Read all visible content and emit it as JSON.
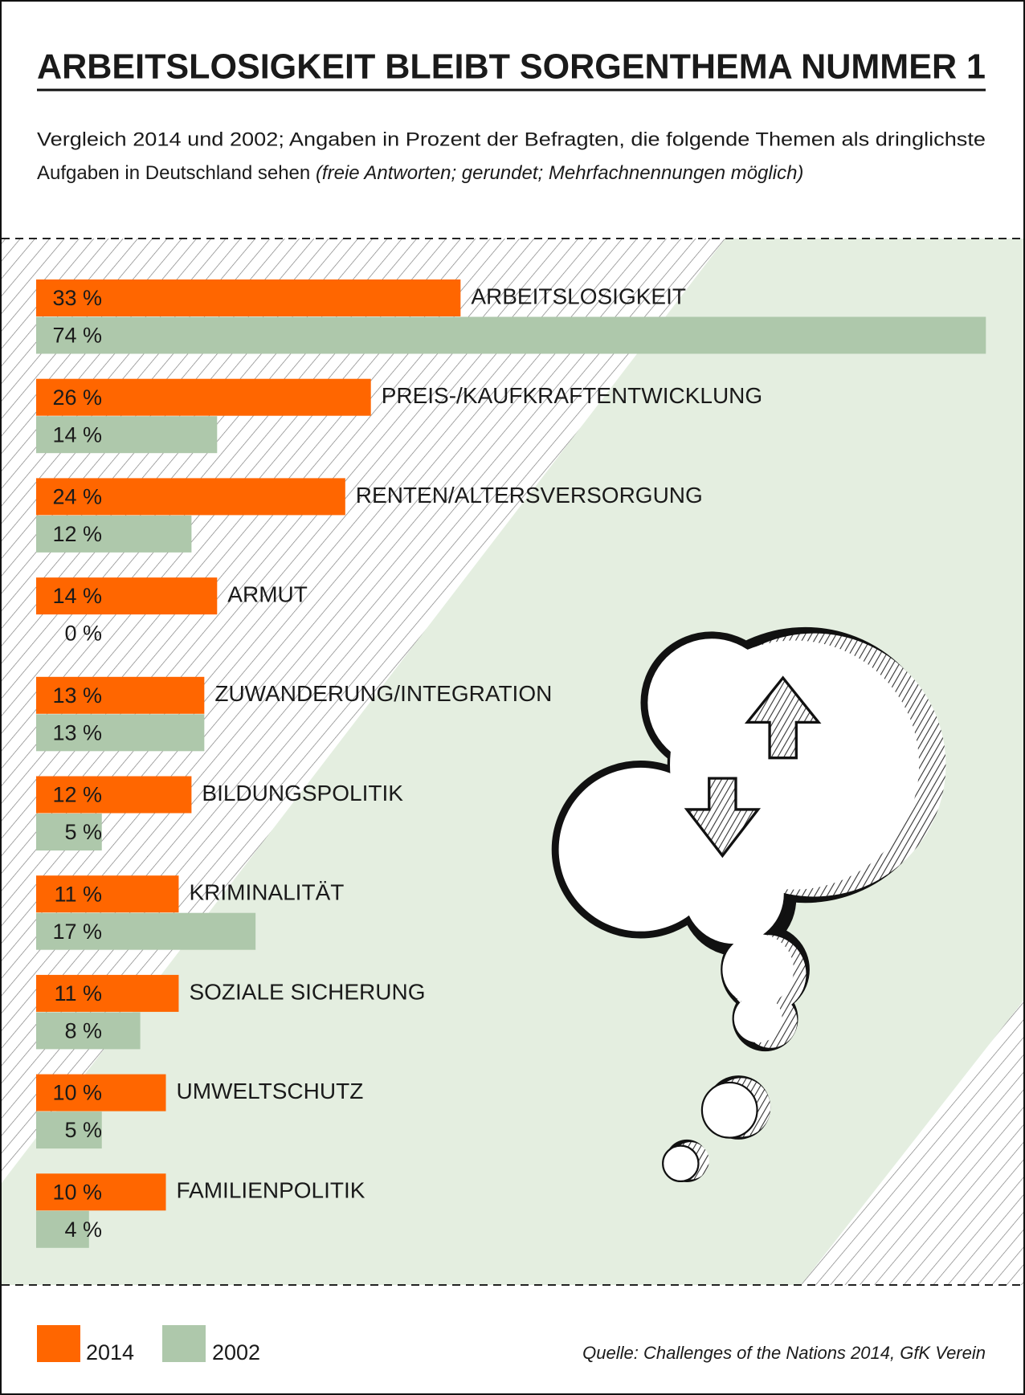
{
  "chart_data": {
    "type": "bar",
    "orientation": "horizontal",
    "title": "ARBEITSLOSIGKEIT BLEIBT SORGENTHEMA NUMMER 1",
    "subtitle": [
      "Vergleich 2014 und 2002; Angaben in Prozent der Befragten, die folgende Themen als dringlichste",
      "Aufgaben in Deutschland sehen"
    ],
    "note": "(freie Antworten; gerundet; Mehrfachnennungen möglich)",
    "categories": [
      "ARBEITSLOSIGKEIT",
      "PREIS-/KAUFKRAFTENTWICKLUNG",
      "RENTEN/ALTERSVERSORGUNG",
      "ARMUT",
      "ZUWANDERUNG/INTEGRATION",
      "BILDUNGSPOLITIK",
      "KRIMINALITÄT",
      "SOZIALE SICHERUNG",
      "UMWELTSCHUTZ",
      "FAMILIENPOLITIK"
    ],
    "series": [
      {
        "name": "2014",
        "color": "#ff6600",
        "values": [
          33,
          26,
          24,
          14,
          13,
          12,
          11,
          11,
          10,
          10
        ],
        "value_labels": [
          "33 %",
          "26 %",
          "24 %",
          "14 %",
          "13 %",
          "12 %",
          "11 %",
          "11 %",
          "10 %",
          "10 %"
        ]
      },
      {
        "name": "2002",
        "color": "#aec8ab",
        "values": [
          74,
          14,
          12,
          0,
          13,
          5,
          17,
          8,
          5,
          4
        ],
        "value_labels": [
          "74 %",
          "14 %",
          "12 %",
          "0 %",
          "13 %",
          "5 %",
          "17 %",
          "8 %",
          "5 %",
          "4 %"
        ]
      }
    ],
    "source": "Quelle: Challenges of the Nations 2014, GfK Verein"
  }
}
